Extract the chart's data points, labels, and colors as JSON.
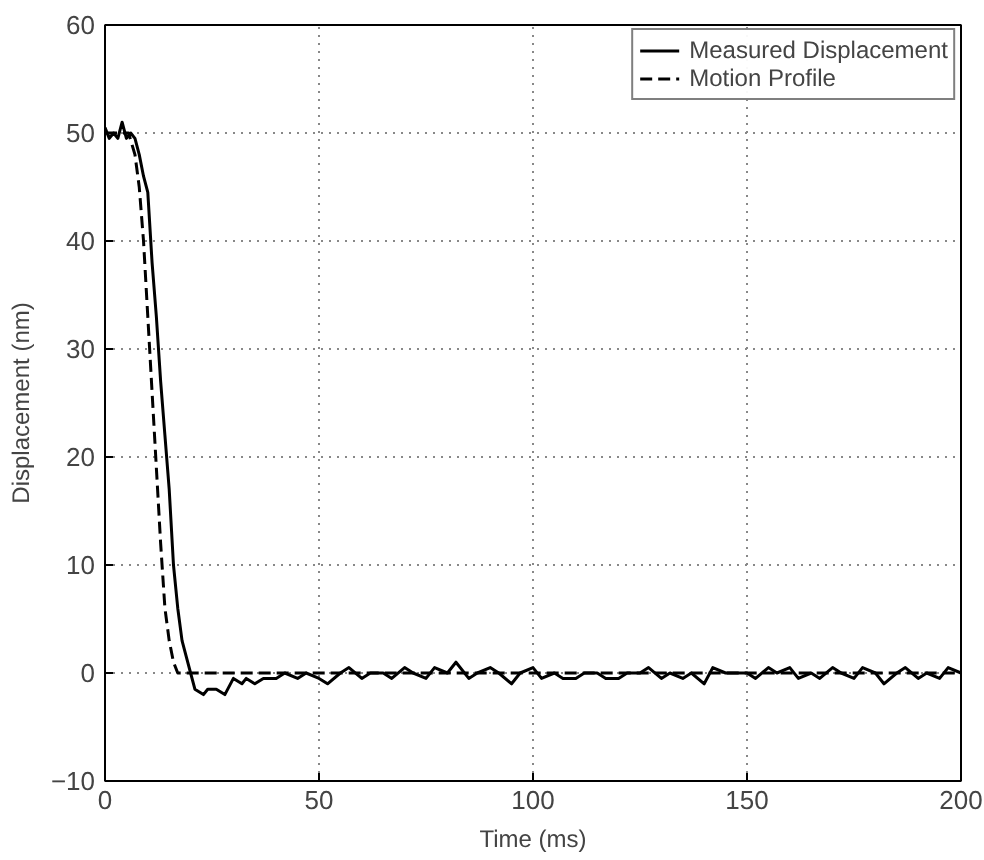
{
  "chart_data": {
    "type": "line",
    "xlabel": "Time (ms)",
    "ylabel": "Displacement (nm)",
    "xlim": [
      0,
      200
    ],
    "ylim": [
      -10,
      60
    ],
    "xticks": [
      0,
      50,
      100,
      150,
      200
    ],
    "yticks": [
      -10,
      0,
      10,
      20,
      30,
      40,
      50,
      60
    ],
    "grid": true,
    "legend": "top right",
    "series": [
      {
        "name": "Measured Displacement",
        "color": "#000000",
        "line_style": "solid",
        "x": [
          0,
          1,
          2,
          3,
          4,
          5,
          6,
          7,
          8,
          9,
          10,
          11,
          12,
          13,
          14,
          15,
          16,
          17,
          18,
          19,
          20,
          21,
          23,
          24,
          26,
          28,
          30,
          32,
          33,
          35,
          37,
          40,
          42,
          45,
          47,
          50,
          52,
          55,
          57,
          60,
          62,
          65,
          67,
          70,
          72,
          75,
          77,
          80,
          82,
          85,
          87,
          90,
          92,
          95,
          97,
          100,
          102,
          105,
          107,
          110,
          112,
          115,
          117,
          120,
          122,
          125,
          127,
          130,
          132,
          135,
          137,
          140,
          142,
          145,
          147,
          150,
          152,
          155,
          157,
          160,
          162,
          165,
          167,
          170,
          172,
          175,
          177,
          180,
          182,
          185,
          187,
          190,
          192,
          195,
          197,
          200
        ],
        "values": [
          50.5,
          49.5,
          50,
          49.5,
          51,
          49.5,
          50,
          49.5,
          48,
          46,
          44.5,
          38,
          33,
          27,
          22,
          17,
          10,
          6,
          3,
          1.5,
          0,
          -1.5,
          -2,
          -1.5,
          -1.5,
          -2,
          -0.5,
          -1,
          -0.5,
          -1,
          -0.5,
          -0.5,
          0,
          -0.5,
          0,
          -0.5,
          -1,
          0,
          0.5,
          -0.5,
          0,
          0,
          -0.5,
          0.5,
          0,
          -0.5,
          0.5,
          0,
          1,
          -0.5,
          0,
          0.5,
          0,
          -1,
          0,
          0.5,
          -0.5,
          0,
          -0.5,
          -0.5,
          0,
          0,
          -0.5,
          -0.5,
          0,
          0,
          0.5,
          -0.5,
          0,
          -0.5,
          0,
          -1,
          0.5,
          0,
          0,
          0,
          -0.5,
          0.5,
          0,
          0.5,
          -0.5,
          0,
          -0.5,
          0.5,
          0,
          -0.5,
          0.5,
          0,
          -1,
          0,
          0.5,
          -0.5,
          0,
          -0.5,
          0.5,
          0
        ]
      },
      {
        "name": "Motion Profile",
        "color": "#000000",
        "line_style": "dashed",
        "x": [
          0,
          5.5,
          7,
          8,
          9,
          10,
          11,
          12,
          13,
          14,
          15,
          16,
          17,
          200
        ],
        "values": [
          50,
          50,
          48,
          45,
          40,
          33,
          26,
          19,
          12,
          6,
          3,
          1,
          0,
          0
        ]
      }
    ]
  }
}
